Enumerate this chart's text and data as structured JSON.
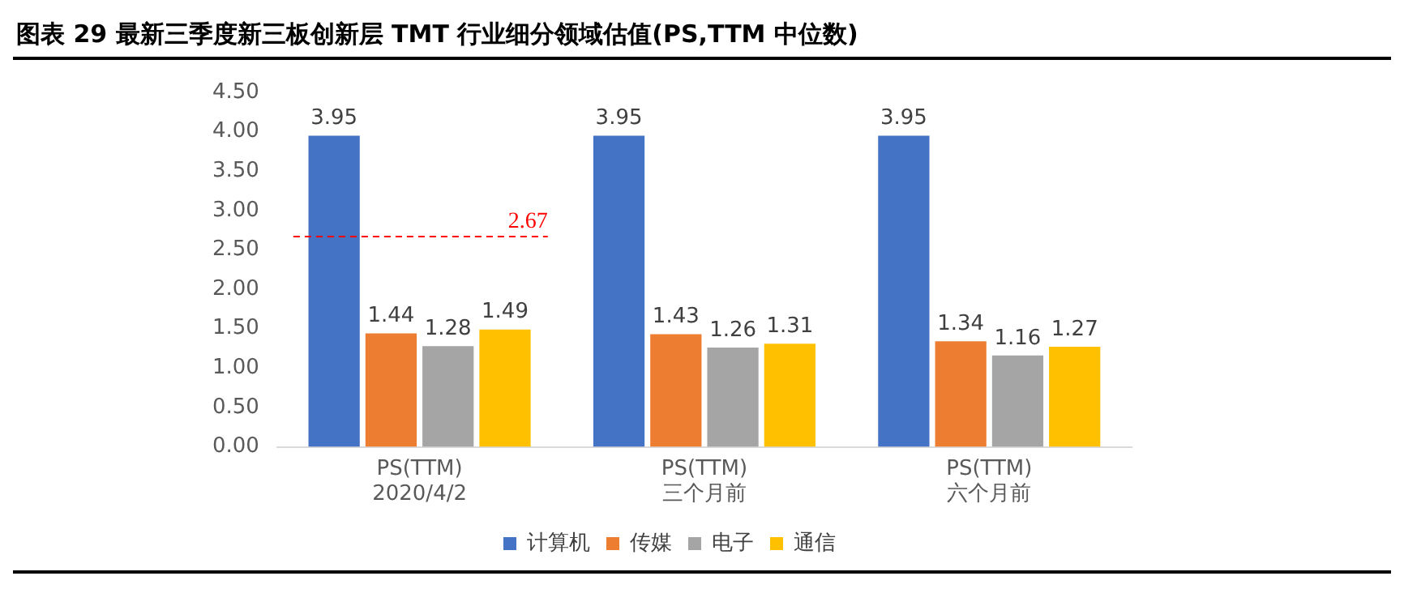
{
  "chart_data": {
    "type": "bar",
    "title": "图表 29 最新三季度新三板创新层 TMT 行业细分领域估值(PS,TTM 中位数)",
    "categories": [
      "PS(TTM)\n2020/4/2",
      "PS(TTM)\n三个月前",
      "PS(TTM)\n六个月前"
    ],
    "series": [
      {
        "name": "计算机",
        "color": "#4472c4",
        "values": [
          3.95,
          3.95,
          3.95
        ]
      },
      {
        "name": "传媒",
        "color": "#ed7d31",
        "values": [
          1.44,
          1.43,
          1.34
        ]
      },
      {
        "name": "电子",
        "color": "#a5a5a5",
        "values": [
          1.28,
          1.26,
          1.16
        ]
      },
      {
        "name": "通信",
        "color": "#ffc000",
        "values": [
          1.49,
          1.31,
          1.27
        ]
      }
    ],
    "ylim": [
      0,
      4.5
    ],
    "yticks": [
      {
        "value": 0,
        "label": "0.00"
      },
      {
        "value": 0.5,
        "label": "0.50"
      },
      {
        "value": 1,
        "label": "1.00"
      },
      {
        "value": 1.5,
        "label": "1.50"
      },
      {
        "value": 2,
        "label": "2.00"
      },
      {
        "value": 2.5,
        "label": "2.50"
      },
      {
        "value": 3,
        "label": "3.00"
      },
      {
        "value": 3.5,
        "label": "3.50"
      },
      {
        "value": 4,
        "label": "4.00"
      },
      {
        "value": 4.5,
        "label": "4.50"
      }
    ],
    "ref_lines": [
      {
        "axis": "y",
        "value": 2.67,
        "label": "2.67",
        "color": "#ff0000",
        "line_style": "dashed"
      }
    ],
    "data_labels": true,
    "grid": false,
    "legend": "bottom"
  }
}
